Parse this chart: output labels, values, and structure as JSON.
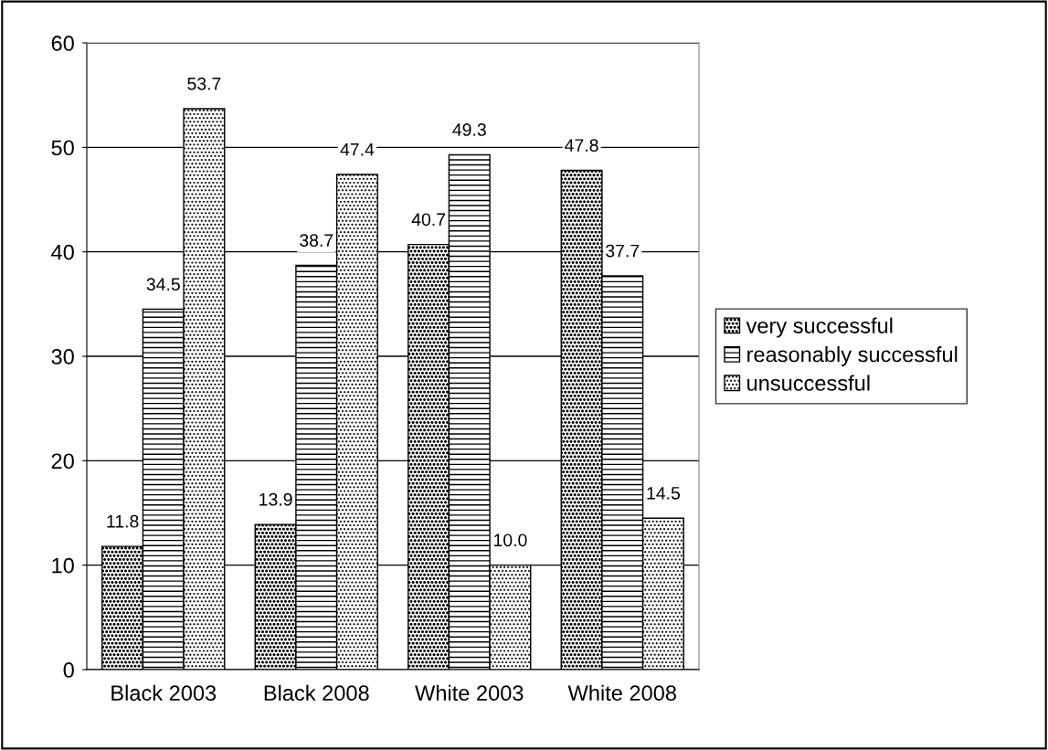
{
  "chart_data": {
    "type": "bar",
    "categories": [
      "Black 2003",
      "Black 2008",
      "White 2003",
      "White 2008"
    ],
    "series": [
      {
        "name": "very successful",
        "color": "#000000",
        "values": [
          11.8,
          13.9,
          40.7,
          47.8
        ]
      },
      {
        "name": "reasonably successful",
        "color": "#000000",
        "values": [
          34.5,
          38.7,
          49.3,
          37.7
        ]
      },
      {
        "name": "unsuccessful",
        "color": "#000000",
        "values": [
          53.7,
          47.4,
          10.0,
          14.5
        ]
      }
    ],
    "value_labels": [
      [
        "11.8",
        "13.9",
        "40.7",
        "47.8"
      ],
      [
        "34.5",
        "38.7",
        "49.3",
        "37.7"
      ],
      [
        "53.7",
        "47.4",
        "10.0",
        "14.5"
      ]
    ],
    "ylim": [
      0,
      60
    ],
    "yticks": [
      0,
      10,
      20,
      30,
      40,
      50,
      60
    ],
    "grid": "y",
    "legend": "right"
  }
}
